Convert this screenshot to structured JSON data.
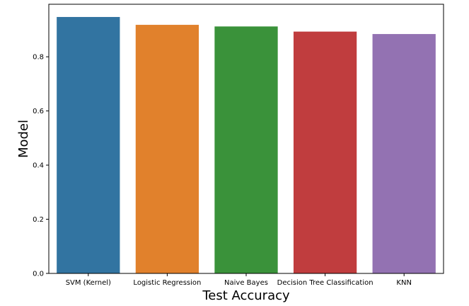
{
  "chart_data": {
    "type": "bar",
    "title": "",
    "xlabel": "Test Accuracy",
    "ylabel": "Model",
    "categories": [
      "SVM (Kernel)",
      "Logistic Regression",
      "Naive Bayes",
      "Decision Tree Classification",
      "KNN"
    ],
    "values": [
      0.947,
      0.918,
      0.912,
      0.893,
      0.884
    ],
    "colors": [
      "#3274a1",
      "#e1812c",
      "#3a923a",
      "#c03d3e",
      "#9372b2"
    ],
    "ylim": [
      0,
      0.994
    ],
    "yticks": [
      0.0,
      0.2,
      0.4,
      0.6,
      0.8
    ],
    "ytick_labels": [
      "0.0",
      "0.2",
      "0.4",
      "0.6",
      "0.8"
    ],
    "grid": false,
    "legend": "none"
  }
}
